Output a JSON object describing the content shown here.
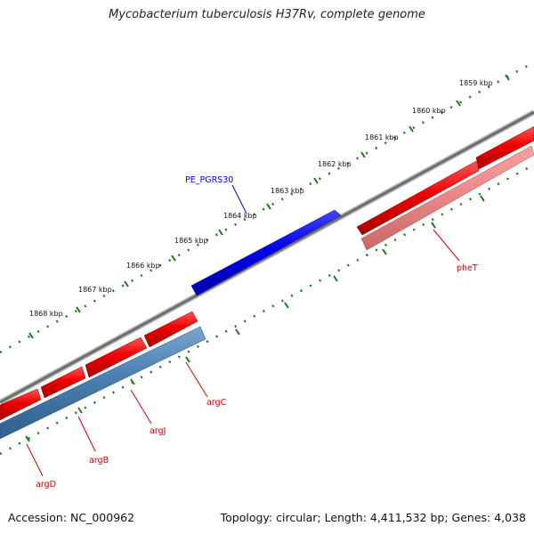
{
  "title": "Mycobacterium tuberculosis H37Rv, complete genome",
  "footer": {
    "accession": "Accession: NC_000962",
    "summary": "Topology: circular; Length: 4,411,532 bp; Genes: 4,038"
  },
  "scale": {
    "ticks": [
      {
        "label": "1859 kbp"
      },
      {
        "label": "1860 kbp"
      },
      {
        "label": "1861 kbp"
      },
      {
        "label": "1862 kbp"
      },
      {
        "label": "1863 kbp"
      },
      {
        "label": "1864 kbp"
      },
      {
        "label": "1865 kbp"
      },
      {
        "label": "1866 kbp"
      },
      {
        "label": "1867 kbp"
      },
      {
        "label": "1868 kbp"
      }
    ]
  },
  "genes": [
    {
      "name": "PE_PGRS30",
      "color": "#0000dd"
    },
    {
      "name": "pheT",
      "color": "#cc0000"
    },
    {
      "name": "argC",
      "color": "#cc0000"
    },
    {
      "name": "argJ",
      "color": "#cc0000"
    },
    {
      "name": "argB",
      "color": "#cc0000"
    },
    {
      "name": "argD",
      "color": "#cc0000"
    }
  ],
  "colors": {
    "forward_cds": "#ee0000",
    "reverse_cds": "#4a7fb0",
    "highlight_cds": "#0000ee",
    "faded_cds": "#ee8888",
    "backbone": "#888888",
    "tick_marks": "#1a7a1a"
  }
}
